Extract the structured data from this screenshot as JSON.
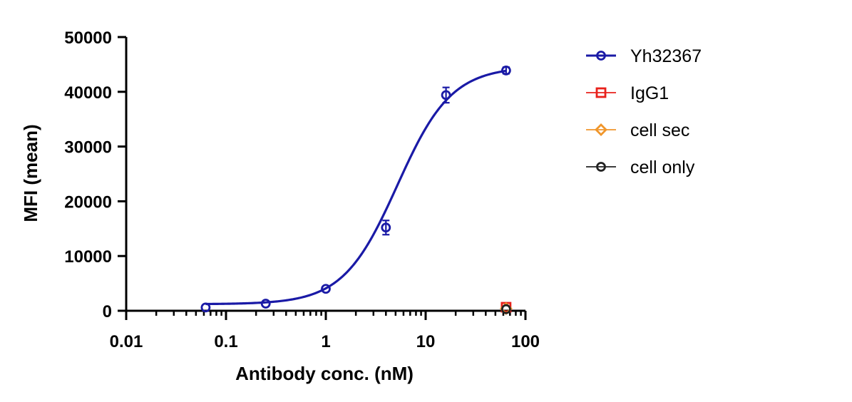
{
  "chart_data": {
    "type": "scatter",
    "xlabel": "Antibody conc. (nM)",
    "ylabel": "MFI (mean)",
    "x_scale": "log",
    "xlim": [
      0.01,
      100
    ],
    "ylim": [
      0,
      50000
    ],
    "x_ticks": [
      0.01,
      0.1,
      1,
      10,
      100
    ],
    "x_tick_labels": [
      "0.01",
      "0.1",
      "1",
      "10",
      "100"
    ],
    "y_ticks": [
      0,
      10000,
      20000,
      30000,
      40000,
      50000
    ],
    "y_tick_labels": [
      "0",
      "10000",
      "20000",
      "30000",
      "40000",
      "50000"
    ],
    "grid": false,
    "legend_position": "right",
    "series": [
      {
        "name": "Yh32367",
        "color": "#1a1aa6",
        "marker": "circle",
        "fit_curve": true,
        "points": [
          {
            "x": 0.0625,
            "y": 600,
            "err": 0
          },
          {
            "x": 0.25,
            "y": 1300,
            "err": 0
          },
          {
            "x": 1,
            "y": 4000,
            "err": 0
          },
          {
            "x": 4,
            "y": 15200,
            "err": 1300
          },
          {
            "x": 16,
            "y": 39400,
            "err": 1400
          },
          {
            "x": 64,
            "y": 43900,
            "err": 600
          }
        ],
        "fit": {
          "bottom": 1200,
          "top": 44600,
          "ec50": 5.2,
          "hill": 1.6
        }
      },
      {
        "name": "IgG1",
        "color": "#e8211b",
        "marker": "square",
        "fit_curve": false,
        "points": [
          {
            "x": 64,
            "y": 650,
            "err": 0
          }
        ]
      },
      {
        "name": "cell sec",
        "color": "#f0962b",
        "marker": "diamond",
        "fit_curve": false,
        "points": [
          {
            "x": 64,
            "y": 400,
            "err": 0
          }
        ]
      },
      {
        "name": "cell only",
        "color": "#222222",
        "marker": "circle",
        "fit_curve": false,
        "points": [
          {
            "x": 64,
            "y": 300,
            "err": 0
          }
        ]
      }
    ]
  }
}
